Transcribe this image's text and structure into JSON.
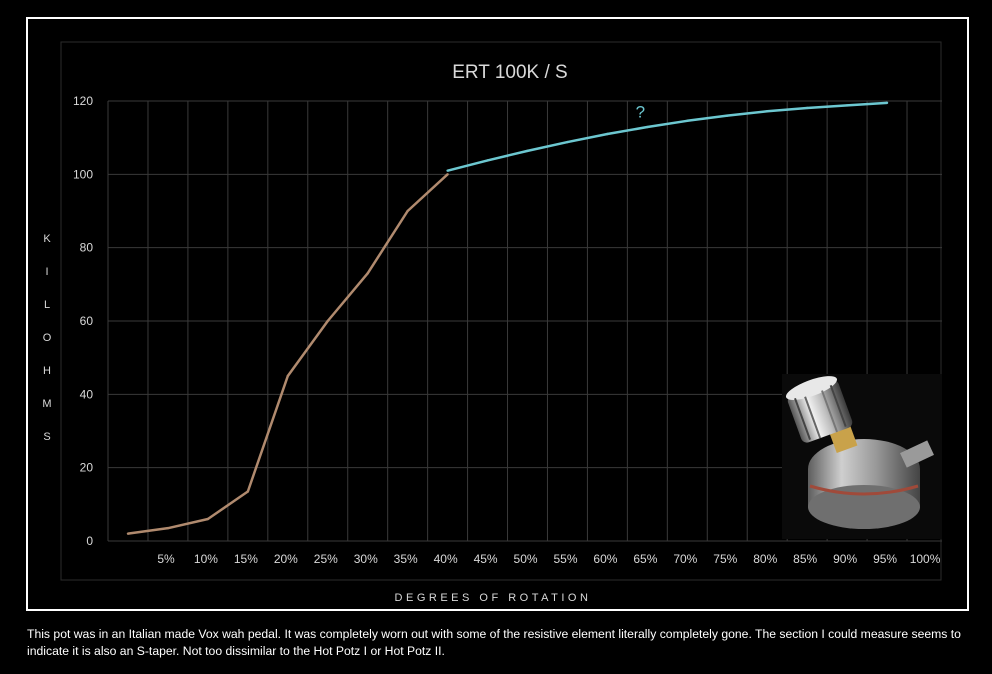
{
  "chart_data": {
    "type": "line",
    "title": "ERT 100K / S",
    "xlabel": "DEGREES OF ROTATION",
    "ylabel": "KILOHMS",
    "categories": [
      "5%",
      "10%",
      "15%",
      "20%",
      "25%",
      "30%",
      "35%",
      "40%",
      "45%",
      "50%",
      "55%",
      "60%",
      "65%",
      "70%",
      "75%",
      "80%",
      "85%",
      "90%",
      "95%",
      "100%"
    ],
    "yticks": [
      "0",
      "20",
      "40",
      "60",
      "80",
      "100",
      "120"
    ],
    "ylim": [
      0,
      120
    ],
    "grid": true,
    "series": [
      {
        "color": "#b08a6e",
        "points": [
          {
            "x": "5%",
            "y": 2
          },
          {
            "x": "10%",
            "y": 3.5
          },
          {
            "x": "15%",
            "y": 6
          },
          {
            "x": "20%",
            "y": 13.5
          },
          {
            "x": "25%",
            "y": 45
          },
          {
            "x": "30%",
            "y": 60
          },
          {
            "x": "35%",
            "y": 73
          },
          {
            "x": "40%",
            "y": 90
          },
          {
            "x": "45%",
            "y": 100
          }
        ]
      },
      {
        "color": "#6cc7d0",
        "points": [
          {
            "x": "45%",
            "y": 101
          },
          {
            "x": "50%",
            "y": 103.8
          },
          {
            "x": "55%",
            "y": 106.4
          },
          {
            "x": "60%",
            "y": 108.8
          },
          {
            "x": "65%",
            "y": 111
          },
          {
            "x": "70%",
            "y": 112.9
          },
          {
            "x": "75%",
            "y": 114.6
          },
          {
            "x": "80%",
            "y": 116
          },
          {
            "x": "85%",
            "y": 117.2
          },
          {
            "x": "90%",
            "y": 118.1
          },
          {
            "x": "95%",
            "y": 118.8
          },
          {
            "x": "100%",
            "y": 119.5
          }
        ]
      }
    ],
    "annotations": [
      {
        "text": "?",
        "x": "70%",
        "y": 115.5,
        "color": "#6cc7d0"
      }
    ]
  },
  "photo": {
    "icon": "potentiometer-photo"
  },
  "caption": "This pot was in an Italian made Vox wah pedal. It was completely worn out with some of the resistive element literally completely gone. The section I could measure seems to indicate it is also an S-taper. Not too dissimilar to the Hot Potz I or Hot Potz II."
}
